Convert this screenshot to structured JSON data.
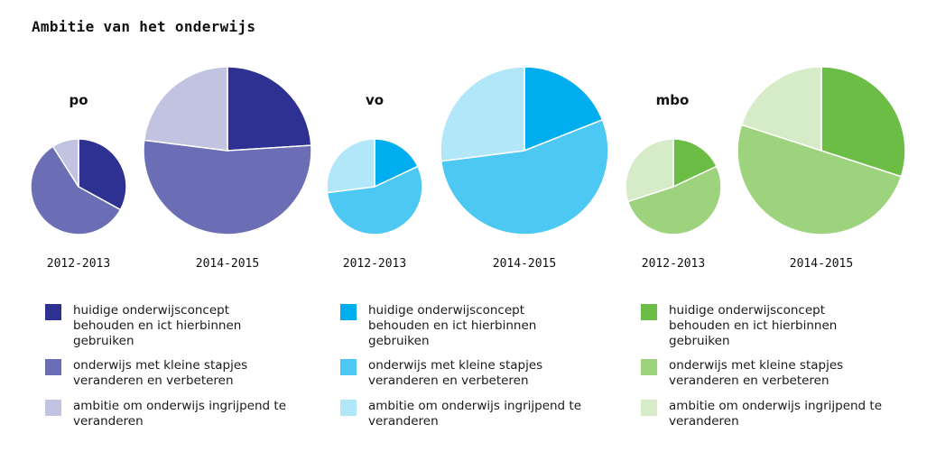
{
  "title": "Ambitie van het onderwijs",
  "legend_labels": [
    "huidige onderwijsconcept behouden en ict hierbinnen gebruiken",
    "onderwijs met kleine stapjes veranderen en verbeteren",
    "ambitie om onderwijs ingrijpend te veranderen"
  ],
  "chart_data": [
    {
      "type": "pie",
      "group": "po",
      "colors": [
        "#2e3192",
        "#6b6eb4",
        "#c2c3e1"
      ],
      "pies": [
        {
          "year": "2012-2013",
          "values": [
            33,
            58,
            9
          ]
        },
        {
          "year": "2014-2015",
          "values": [
            24,
            53,
            23
          ]
        }
      ]
    },
    {
      "type": "pie",
      "group": "vo",
      "colors": [
        "#00adef",
        "#4dc8f2",
        "#b2e6f9"
      ],
      "pies": [
        {
          "year": "2012-2013",
          "values": [
            18,
            55,
            27
          ]
        },
        {
          "year": "2014-2015",
          "values": [
            19,
            54,
            27
          ]
        }
      ]
    },
    {
      "type": "pie",
      "group": "mbo",
      "colors": [
        "#6cbd45",
        "#9dd37d",
        "#d6ecc9"
      ],
      "pies": [
        {
          "year": "2012-2013",
          "values": [
            18,
            52,
            30
          ]
        },
        {
          "year": "2014-2015",
          "values": [
            30,
            50,
            20
          ]
        }
      ]
    }
  ]
}
